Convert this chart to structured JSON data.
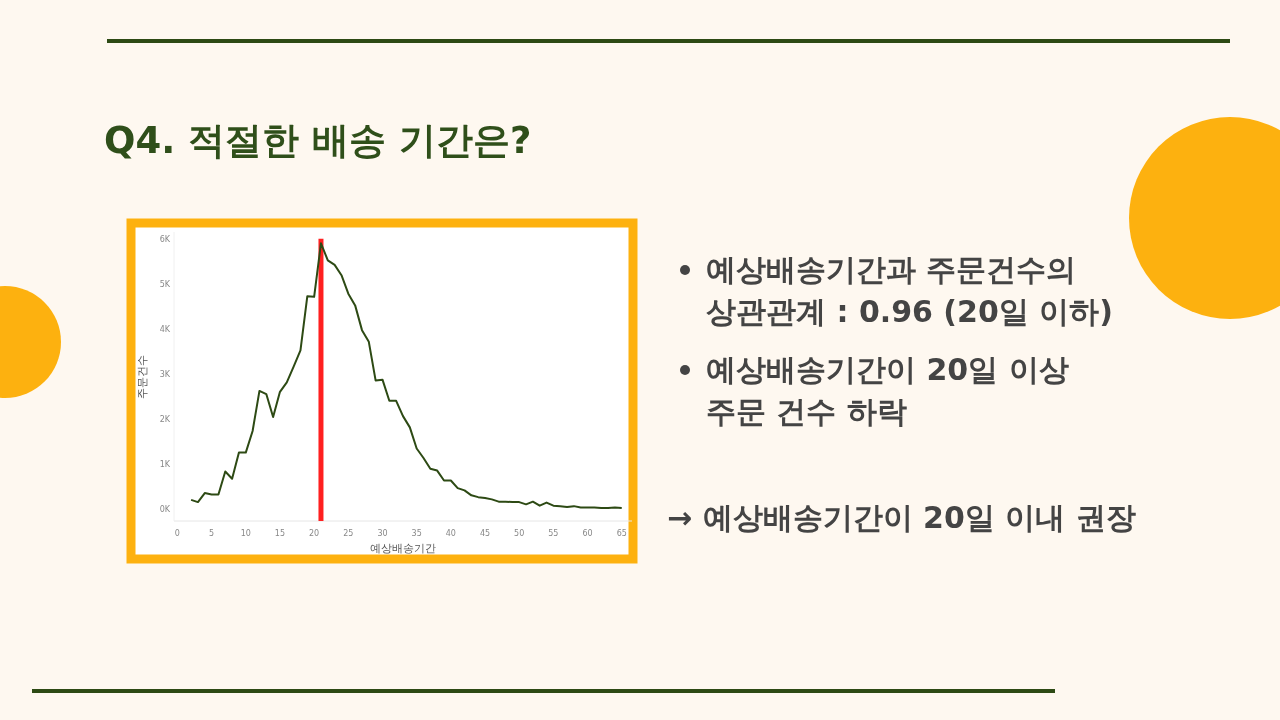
{
  "chart_data": {
    "type": "line",
    "title": "Q4. 적절한 배송 기간은?",
    "xlabel": "예상배송기간",
    "ylabel": "주문건수",
    "x": [
      2,
      3,
      4,
      5,
      6,
      7,
      8,
      9,
      10,
      11,
      12,
      13,
      14,
      15,
      16,
      17,
      18,
      19,
      20,
      21,
      22,
      23,
      24,
      25,
      26,
      27,
      28,
      29,
      30,
      31,
      32,
      33,
      34,
      35,
      36,
      37,
      38,
      39,
      40,
      41,
      42,
      43,
      44,
      45,
      46,
      47,
      48,
      49,
      50,
      51,
      52,
      53,
      54,
      55,
      56,
      57,
      58,
      59,
      60,
      61,
      62,
      63,
      64,
      65
    ],
    "series": [
      {
        "color": "#2d4a14",
        "values": [
          200,
          150,
          350,
          320,
          320,
          830,
          670,
          1250,
          1250,
          1730,
          2620,
          2550,
          2040,
          2600,
          2810,
          3160,
          3520,
          4720,
          4710,
          5900,
          5520,
          5420,
          5190,
          4780,
          4520,
          3970,
          3710,
          2850,
          2870,
          2400,
          2400,
          2060,
          1810,
          1340,
          1130,
          890,
          850,
          630,
          630,
          460,
          410,
          300,
          260,
          240,
          210,
          160,
          160,
          150,
          150,
          100,
          160,
          70,
          140,
          70,
          60,
          40,
          60,
          30,
          30,
          30,
          20,
          20,
          30,
          20
        ]
      }
    ],
    "xlim": [
      -0.5,
      66.5
    ],
    "ylim": [
      -270,
      6150
    ],
    "xticks": [
      0,
      5,
      10,
      15,
      20,
      25,
      30,
      35,
      40,
      45,
      50,
      55,
      60,
      65
    ],
    "yticks": [
      {
        "value": 0,
        "label": "0K"
      },
      {
        "value": 1000,
        "label": "1K"
      },
      {
        "value": 2000,
        "label": "2K"
      },
      {
        "value": 3000,
        "label": "3K"
      },
      {
        "value": 4000,
        "label": "4K"
      },
      {
        "value": 5000,
        "label": "5K"
      },
      {
        "value": 6000,
        "label": "6K"
      }
    ],
    "grid": false,
    "marker": "none",
    "line_style": "solid",
    "ref_lines": [
      {
        "axis": "x",
        "value": 21,
        "color": "#ff2020"
      }
    ],
    "annotations": [
      "예상배송기간과 주문건수의\n상관관계 : 0.96 (20일 이하)",
      "예상배송기간이 20일 이상\n주문 건수 하락",
      "→ 예상배송기간이 20일 이내 권장"
    ]
  }
}
